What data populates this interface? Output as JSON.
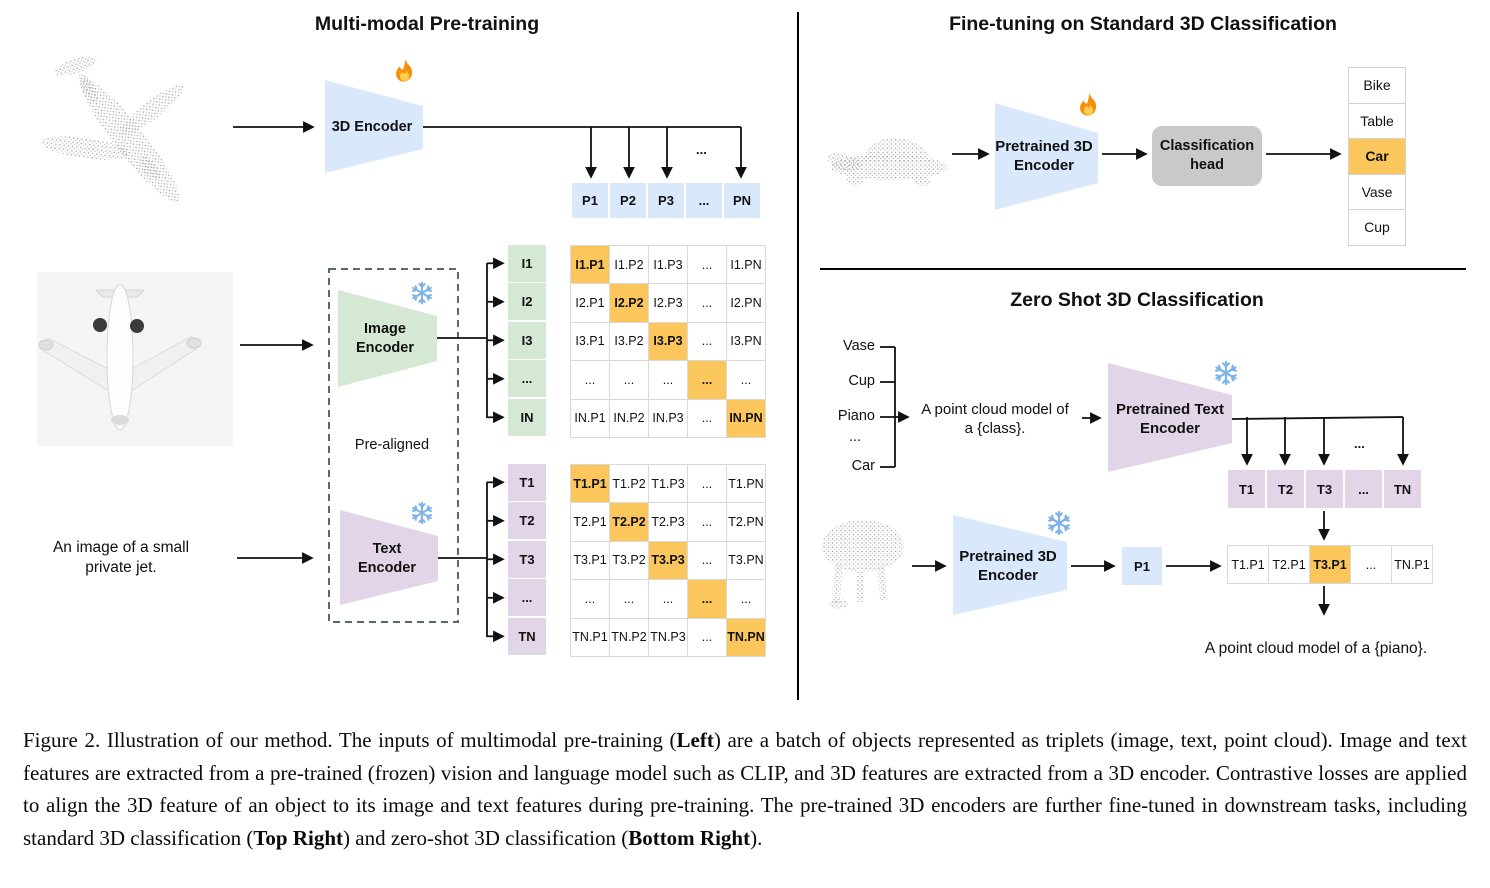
{
  "left": {
    "title": "Multi-modal Pre-training",
    "encoder_3d_label": "3D Encoder",
    "image_encoder_label": "Image\nEncoder",
    "text_encoder_label": "Text\nEncoder",
    "pre_aligned_label": "Pre-aligned",
    "image_caption": "An image of a small\nprivate jet.",
    "branch_dots": "...",
    "p_row": [
      "P1",
      "P2",
      "P3",
      "...",
      "PN"
    ],
    "i_labels": [
      "I1",
      "I2",
      "I3",
      "...",
      "IN"
    ],
    "t_labels": [
      "T1",
      "T2",
      "T3",
      "...",
      "TN"
    ],
    "i_matrix": [
      [
        "I1.P1",
        "I1.P2",
        "I1.P3",
        "...",
        "I1.PN"
      ],
      [
        "I2.P1",
        "I2.P2",
        "I2.P3",
        "...",
        "I2.PN"
      ],
      [
        "I3.P1",
        "I3.P2",
        "I3.P3",
        "...",
        "I3.PN"
      ],
      [
        "...",
        "...",
        "...",
        "...",
        "..."
      ],
      [
        "IN.P1",
        "IN.P2",
        "IN.P3",
        "...",
        "IN.PN"
      ]
    ],
    "t_matrix": [
      [
        "T1.P1",
        "T1.P2",
        "T1.P3",
        "...",
        "T1.PN"
      ],
      [
        "T2.P1",
        "T2.P2",
        "T2.P3",
        "...",
        "T2.PN"
      ],
      [
        "T3.P1",
        "T3.P2",
        "T3.P3",
        "...",
        "T3.PN"
      ],
      [
        "...",
        "...",
        "...",
        "...",
        "..."
      ],
      [
        "TN.P1",
        "TN.P2",
        "TN.P3",
        "...",
        "TN.PN"
      ]
    ]
  },
  "top_right": {
    "title": "Fine-tuning on Standard 3D Classification",
    "encoder_label": "Pretrained 3D\nEncoder",
    "head_label": "Classification\nhead",
    "classes": [
      "Bike",
      "Table",
      "Car",
      "Vase",
      "Cup"
    ],
    "predicted_class": "Car",
    "predicted_index": 2
  },
  "bottom_right": {
    "title": "Zero Shot 3D Classification",
    "class_list": [
      "Vase",
      "Cup",
      "Piano",
      "...",
      "Car"
    ],
    "prompt": "A point cloud model of\na {class}.",
    "text_encoder_label": "Pretrained Text\nEncoder",
    "encoder_3d_label": "Pretrained 3D\nEncoder",
    "p_box": "P1",
    "connector_dots": "...",
    "t_row": [
      "T1",
      "T2",
      "T3",
      "...",
      "TN"
    ],
    "tp_row": [
      "T1.P1",
      "T2.P1",
      "T3.P1",
      "...",
      "TN.P1"
    ],
    "tp_highlight_index": 2,
    "result_prompt": "A point cloud model of a {piano}."
  },
  "icons": {
    "fire": "flame-icon",
    "snowflake": "snowflake-icon"
  },
  "colors": {
    "blue": "#dae8fc",
    "green": "#d5e8d4",
    "purple": "#e1d5e7",
    "orange": "#fbc75d",
    "head_gray": "#c9c9c9"
  },
  "caption": {
    "segments": [
      {
        "text": "Figure 2. Illustration of our method. The inputs of multimodal pre-training (",
        "bold": false
      },
      {
        "text": "Left",
        "bold": true
      },
      {
        "text": ") are a batch of objects represented as triplets (image, text, point cloud). Image and text features are extracted from a pre-trained (frozen) vision and language model such as CLIP, and 3D features are extracted from a 3D encoder. Contrastive losses are applied to align the 3D feature of an object to its image and text features during pre-training. The pre-trained 3D encoders are further fine-tuned in downstream tasks, including standard 3D classification (",
        "bold": false
      },
      {
        "text": "Top Right",
        "bold": true
      },
      {
        "text": ") and zero-shot 3D classification (",
        "bold": false
      },
      {
        "text": "Bottom Right",
        "bold": true
      },
      {
        "text": ").",
        "bold": false
      }
    ]
  }
}
